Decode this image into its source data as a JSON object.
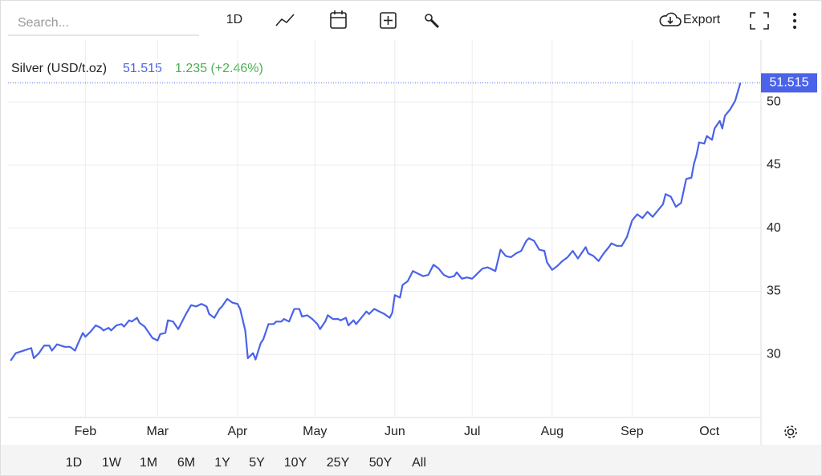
{
  "toolbar": {
    "search": "Search...",
    "interval": "1D",
    "export": "Export"
  },
  "ranges": [
    "1D",
    "1W",
    "1M",
    "6M",
    "1Y",
    "5Y",
    "10Y",
    "25Y",
    "50Y",
    "All"
  ],
  "chart_data": {
    "type": "line",
    "title": "Silver (USD/t.oz)",
    "change": "1.235 (+2.46%)",
    "x": [
      2,
      4,
      7,
      10,
      11,
      13,
      15,
      17,
      18,
      20,
      23,
      25,
      27,
      28,
      30,
      31,
      33,
      35,
      37,
      38,
      40,
      41,
      43,
      45,
      46,
      48,
      49,
      51,
      52,
      54,
      55,
      57,
      59,
      60,
      62,
      63,
      65,
      67,
      69,
      70,
      72,
      74,
      76,
      78,
      79,
      81,
      83,
      84,
      86,
      88,
      90,
      91,
      93,
      94,
      96,
      97,
      99,
      100,
      102,
      104,
      105,
      107,
      108,
      110,
      112,
      114,
      115,
      117,
      119,
      121,
      122,
      124,
      125,
      127,
      129,
      130,
      132,
      133,
      135,
      136,
      138,
      140,
      141,
      143,
      145,
      147,
      149,
      150,
      151,
      153,
      154,
      156,
      158,
      160,
      162,
      164,
      166,
      168,
      170,
      172,
      174,
      175,
      177,
      179,
      181,
      183,
      185,
      187,
      188,
      190,
      192,
      194,
      196,
      198,
      200,
      202,
      203,
      205,
      207,
      209,
      210,
      212,
      214,
      216,
      218,
      220,
      222,
      223,
      225,
      226,
      228,
      230,
      232,
      234,
      235,
      237,
      239,
      241,
      243,
      245,
      247,
      249,
      251,
      253,
      255,
      256,
      258,
      260,
      262,
      264,
      266,
      267,
      268,
      269,
      271,
      272,
      274,
      275,
      277,
      278,
      279,
      281,
      283,
      285
    ],
    "series": [
      {
        "name": "Silver (USD/t.oz)",
        "color": "#4a63e8",
        "values": [
          29.5,
          30.1,
          30.3,
          30.5,
          29.7,
          30.1,
          30.7,
          30.7,
          30.3,
          30.8,
          30.6,
          30.6,
          30.3,
          30.8,
          31.7,
          31.4,
          31.8,
          32.3,
          32.1,
          31.9,
          32.1,
          31.9,
          32.3,
          32.4,
          32.2,
          32.7,
          32.6,
          32.9,
          32.5,
          32.2,
          31.9,
          31.3,
          31.1,
          31.6,
          31.7,
          32.7,
          32.6,
          32.0,
          32.8,
          33.2,
          33.9,
          33.8,
          34.0,
          33.8,
          33.2,
          32.9,
          33.6,
          33.8,
          34.4,
          34.1,
          34.0,
          33.6,
          31.9,
          29.7,
          30.1,
          29.6,
          30.9,
          31.2,
          32.4,
          32.4,
          32.6,
          32.6,
          32.8,
          32.6,
          33.6,
          33.6,
          33.0,
          33.1,
          32.8,
          32.4,
          32.0,
          32.6,
          33.1,
          32.8,
          32.8,
          32.7,
          32.9,
          32.3,
          32.7,
          32.4,
          32.9,
          33.4,
          33.2,
          33.6,
          33.4,
          33.2,
          32.9,
          33.3,
          34.7,
          34.5,
          35.5,
          35.8,
          36.6,
          36.4,
          36.2,
          36.3,
          37.1,
          36.8,
          36.3,
          36.1,
          36.2,
          36.5,
          36.0,
          36.1,
          36.0,
          36.4,
          36.8,
          36.9,
          36.8,
          36.6,
          38.3,
          37.8,
          37.7,
          38.0,
          38.2,
          39.0,
          39.2,
          39.0,
          38.3,
          38.2,
          37.3,
          36.7,
          37.0,
          37.4,
          37.7,
          38.2,
          37.6,
          37.9,
          38.5,
          38.0,
          37.8,
          37.4,
          38.0,
          38.5,
          38.8,
          38.6,
          38.6,
          39.3,
          40.6,
          41.1,
          40.8,
          41.3,
          40.9,
          41.4,
          41.9,
          42.7,
          42.5,
          41.7,
          42.0,
          43.9,
          44.0,
          45.1,
          45.8,
          46.8,
          46.7,
          47.3,
          47.0,
          47.9,
          48.5,
          47.9,
          48.9,
          49.4,
          50.1,
          51.515
        ]
      }
    ],
    "xlim": [
      1,
      293
    ],
    "xticks": [
      {
        "value": 31,
        "label": "Feb"
      },
      {
        "value": 59,
        "label": "Mar"
      },
      {
        "value": 90,
        "label": "Apr"
      },
      {
        "value": 120,
        "label": "May"
      },
      {
        "value": 151,
        "label": "Jun"
      },
      {
        "value": 181,
        "label": "Jul"
      },
      {
        "value": 212,
        "label": "Aug"
      },
      {
        "value": 243,
        "label": "Sep"
      },
      {
        "value": 273,
        "label": "Oct"
      }
    ],
    "ylim": [
      25,
      55
    ],
    "yticks": [
      30,
      35,
      40,
      45,
      50
    ],
    "grid": true
  }
}
